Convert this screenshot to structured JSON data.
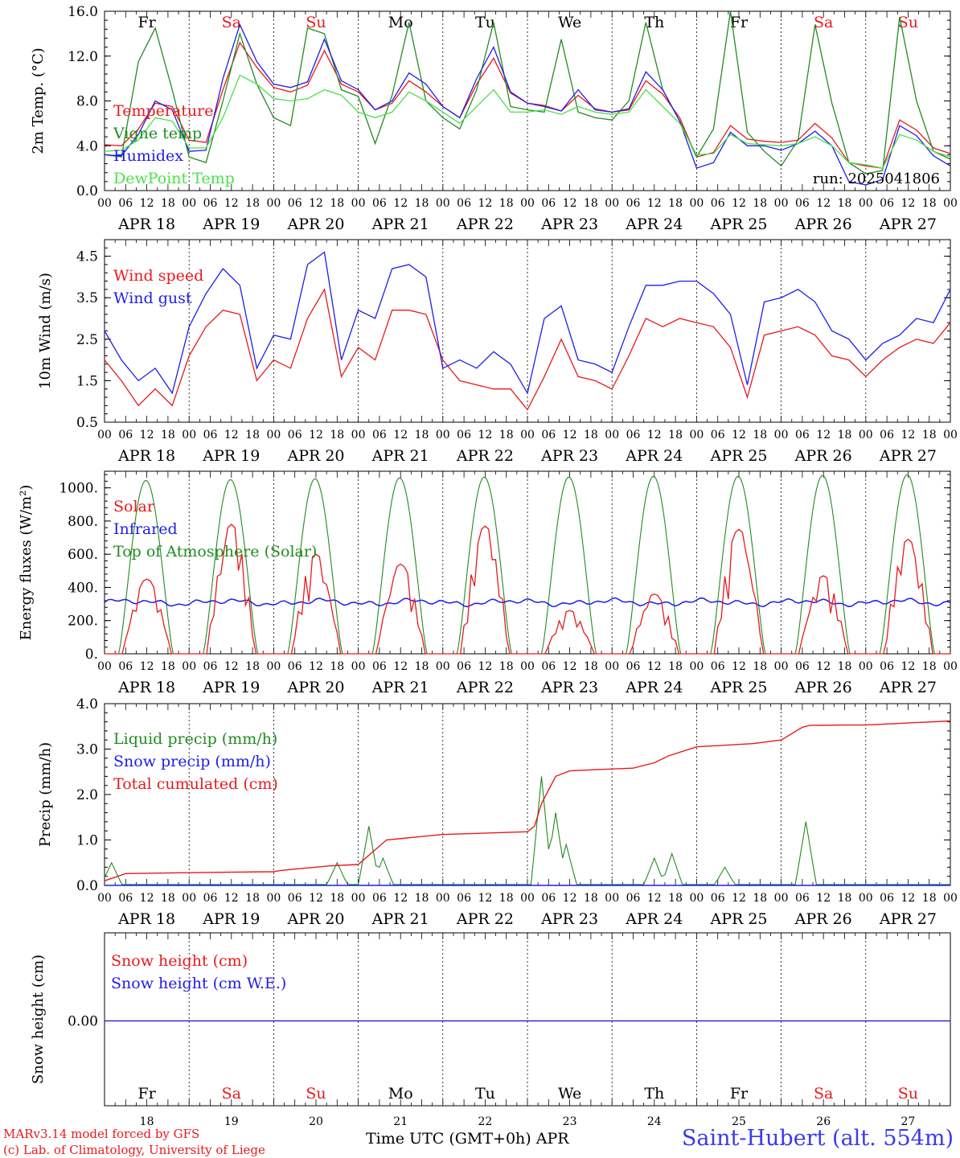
{
  "chart_data": {
    "type": "line",
    "time_axis": {
      "hour_ticks": [
        "00",
        "06",
        "12",
        "18"
      ],
      "date_labels": [
        "APR 18",
        "APR 19",
        "APR 20",
        "APR 21",
        "APR 22",
        "APR 23",
        "APR 24",
        "APR 25",
        "APR 26",
        "APR 27"
      ],
      "weekday_labels": [
        "Fr",
        "Sa",
        "Su",
        "Mo",
        "Tu",
        "We",
        "Th",
        "Fr",
        "Sa",
        "Su"
      ],
      "weekend_flags": [
        false,
        true,
        true,
        false,
        false,
        false,
        false,
        false,
        true,
        true
      ],
      "day_numbers": [
        "18",
        "19",
        "20",
        "21",
        "22",
        "23",
        "24",
        "25",
        "26",
        "27"
      ],
      "month": "APR",
      "title": "Time UTC (GMT+0h)",
      "x_hours": [
        0,
        6,
        12,
        18,
        24,
        30,
        36,
        42,
        48,
        54,
        60,
        66,
        72,
        78,
        84,
        90,
        96,
        102,
        108,
        114,
        120,
        126,
        132,
        138,
        144,
        150,
        156,
        162,
        168,
        174,
        180,
        186,
        192,
        198,
        204,
        210,
        216,
        222,
        228,
        234,
        240
      ]
    },
    "panels": [
      {
        "id": "temp",
        "ylabel": "2m Temp. (°C)",
        "ylim": [
          0,
          16
        ],
        "yticks": [
          "0.0",
          "4.0",
          "8.0",
          "12.0",
          "16.0"
        ],
        "run_label": "run: 2025041806",
        "series": [
          {
            "name": "Temperature",
            "color": "#e8191d",
            "values": [
              4.1,
              4.0,
              5.5,
              7.8,
              7.5,
              4.5,
              4.3,
              9.0,
              13.2,
              11.0,
              9.2,
              8.8,
              9.4,
              12.5,
              9.5,
              8.8,
              7.2,
              7.8,
              9.8,
              8.8,
              7.5,
              6.5,
              9.5,
              11.8,
              8.7,
              7.8,
              7.6,
              7.1,
              8.5,
              7.3,
              7.0,
              7.2,
              9.8,
              8.6,
              6.5,
              3.0,
              3.4,
              5.8,
              4.6,
              4.4,
              4.3,
              4.5,
              6.0,
              4.7,
              2.5,
              2.2,
              2.0,
              6.3,
              5.4,
              3.8,
              3.3
            ]
          },
          {
            "name": "Vigne temp",
            "color": "#228b22",
            "values": [
              3.2,
              3.0,
              11.5,
              14.5,
              9.0,
              3.0,
              2.5,
              8.0,
              14.0,
              9.5,
              6.5,
              5.8,
              14.5,
              14.0,
              9.0,
              8.4,
              4.2,
              8.5,
              15.0,
              8.0,
              6.5,
              5.5,
              9.0,
              15.0,
              7.5,
              7.2,
              7.0,
              13.5,
              7.0,
              6.5,
              6.3,
              8.0,
              15.0,
              9.0,
              6.2,
              3.0,
              5.5,
              16.0,
              5.2,
              3.5,
              2.2,
              4.5,
              14.8,
              7.8,
              2.5,
              1.5,
              1.8,
              15.5,
              8.0,
              3.5,
              2.8
            ]
          },
          {
            "name": "Humidex",
            "color": "#1e1ee8",
            "values": [
              3.2,
              3.1,
              5.0,
              8.0,
              7.2,
              3.5,
              3.6,
              10.0,
              14.8,
              11.5,
              9.5,
              9.2,
              9.7,
              13.5,
              9.8,
              9.0,
              7.2,
              8.0,
              10.5,
              9.5,
              7.5,
              6.5,
              10.0,
              12.8,
              8.8,
              7.8,
              7.5,
              7.1,
              9.0,
              7.2,
              7.0,
              7.3,
              10.6,
              9.0,
              6.2,
              2.0,
              2.5,
              5.2,
              4.0,
              4.0,
              3.6,
              4.2,
              5.3,
              4.0,
              0.8,
              0.5,
              1.0,
              5.8,
              4.9,
              3.1,
              2.2
            ]
          },
          {
            "name": "DewPoint Temp",
            "color": "#4ce04c",
            "values": [
              3.5,
              3.6,
              4.5,
              6.5,
              6.2,
              3.8,
              3.8,
              6.5,
              10.3,
              9.5,
              8.2,
              8.0,
              8.2,
              9.0,
              8.5,
              7.0,
              6.5,
              7.0,
              8.8,
              8.0,
              7.0,
              6.0,
              7.5,
              9.0,
              7.0,
              7.0,
              7.2,
              6.8,
              7.5,
              7.0,
              6.8,
              7.0,
              9.0,
              7.5,
              6.0,
              3.2,
              3.3,
              5.0,
              4.2,
              4.1,
              4.0,
              4.2,
              4.8,
              4.0,
              2.5,
              2.3,
              2.0,
              5.0,
              4.5,
              3.5,
              3.0
            ]
          }
        ]
      },
      {
        "id": "wind",
        "ylabel": "10m Wind (m/s)",
        "ylim": [
          0.5,
          4.9
        ],
        "yticks": [
          "0.5",
          "1.5",
          "2.5",
          "3.5",
          "4.5"
        ],
        "series": [
          {
            "name": "Wind speed",
            "color": "#e8191d",
            "values": [
              2.0,
              1.5,
              0.9,
              1.3,
              0.9,
              2.1,
              2.8,
              3.2,
              3.1,
              1.5,
              2.0,
              1.8,
              3.0,
              3.7,
              1.6,
              2.3,
              2.0,
              3.2,
              3.2,
              3.1,
              2.0,
              1.5,
              1.4,
              1.3,
              1.3,
              0.8,
              1.6,
              2.5,
              1.6,
              1.5,
              1.3,
              2.1,
              3.0,
              2.8,
              3.0,
              2.9,
              2.8,
              2.3,
              1.1,
              2.6,
              2.7,
              2.8,
              2.6,
              2.1,
              2.0,
              1.6,
              2.0,
              2.3,
              2.5,
              2.4,
              2.9
            ]
          },
          {
            "name": "Wind gust",
            "color": "#1e1ee8",
            "values": [
              2.7,
              2.0,
              1.5,
              1.8,
              1.2,
              2.8,
              3.6,
              4.2,
              3.8,
              1.8,
              2.6,
              2.5,
              4.3,
              4.6,
              2.0,
              3.2,
              3.0,
              4.2,
              4.3,
              4.0,
              1.8,
              2.0,
              1.8,
              2.2,
              1.9,
              1.2,
              3.0,
              3.3,
              2.0,
              1.9,
              1.7,
              2.8,
              3.8,
              3.8,
              3.9,
              3.9,
              3.6,
              3.1,
              1.4,
              3.4,
              3.5,
              3.7,
              3.4,
              2.7,
              2.5,
              2.0,
              2.4,
              2.6,
              3.0,
              2.9,
              3.7
            ]
          }
        ]
      },
      {
        "id": "energy",
        "ylabel": "Energy fluxes (W/m²)",
        "ylim": [
          0,
          1100
        ],
        "yticks": [
          "0.",
          "200.",
          "400.",
          "600.",
          "800.",
          "1000."
        ],
        "series": [
          {
            "name": "Solar",
            "color": "#e8191d",
            "diurnal_peaks": [
              450,
              780,
              600,
              540,
              770,
              260,
              360,
              750,
              470,
              690
            ]
          },
          {
            "name": "Infrared",
            "color": "#1e1ee8",
            "mean_level": 310
          },
          {
            "name": "Top of Atmosphere (Solar)",
            "color": "#228b22",
            "diurnal_peaks": [
              1045,
              1050,
              1055,
              1060,
              1065,
              1065,
              1070,
              1070,
              1075,
              1080
            ]
          }
        ]
      },
      {
        "id": "precip",
        "ylabel": "Precip (mm/h)",
        "ylim": [
          0,
          4
        ],
        "yticks": [
          "0.0",
          "1.0",
          "2.0",
          "3.0",
          "4.0"
        ],
        "series": [
          {
            "name": "Liquid precip (mm/h)",
            "color": "#228b22",
            "events": [
              [
                2,
                0.5
              ],
              [
                66,
                0.5
              ],
              [
                75,
                1.3
              ],
              [
                79,
                0.6
              ],
              [
                124,
                2.4
              ],
              [
                128,
                1.6
              ],
              [
                131,
                0.9
              ],
              [
                156,
                0.6
              ],
              [
                161,
                0.7
              ],
              [
                176,
                0.4
              ],
              [
                199,
                1.4
              ]
            ]
          },
          {
            "name": "Snow precip (mm/h)",
            "color": "#1e1ee8",
            "values": [
              0
            ]
          },
          {
            "name": "Total cumulated (cm)",
            "color": "#e8191d",
            "x": [
              0,
              6,
              24,
              48,
              50,
              64,
              72,
              80,
              96,
              120,
              122,
              124,
              128,
              132,
              140,
              150,
              156,
              160,
              168,
              184,
              192,
              198,
              200,
              210,
              216,
              240
            ],
            "values": [
              0.1,
              0.26,
              0.28,
              0.3,
              0.33,
              0.43,
              0.46,
              1.0,
              1.12,
              1.18,
              1.3,
              1.8,
              2.4,
              2.52,
              2.55,
              2.58,
              2.7,
              2.85,
              3.05,
              3.12,
              3.2,
              3.48,
              3.52,
              3.53,
              3.53,
              3.62
            ]
          }
        ]
      },
      {
        "id": "snow",
        "ylabel": "Snow height (cm)",
        "ytick_label": "0.00",
        "series": [
          {
            "name": "Snow height (cm)",
            "color": "#e8191d",
            "values": [
              0
            ]
          },
          {
            "name": "Snow height (cm W.E.)",
            "color": "#1e1ee8",
            "values": [
              0
            ]
          }
        ]
      }
    ]
  },
  "footer": {
    "credit_line1": "MARv3.14 model forced by GFS",
    "credit_line2": "(c) Lab. of Climatology, University of Liege",
    "station": "Saint-Hubert (alt. 554m)"
  }
}
